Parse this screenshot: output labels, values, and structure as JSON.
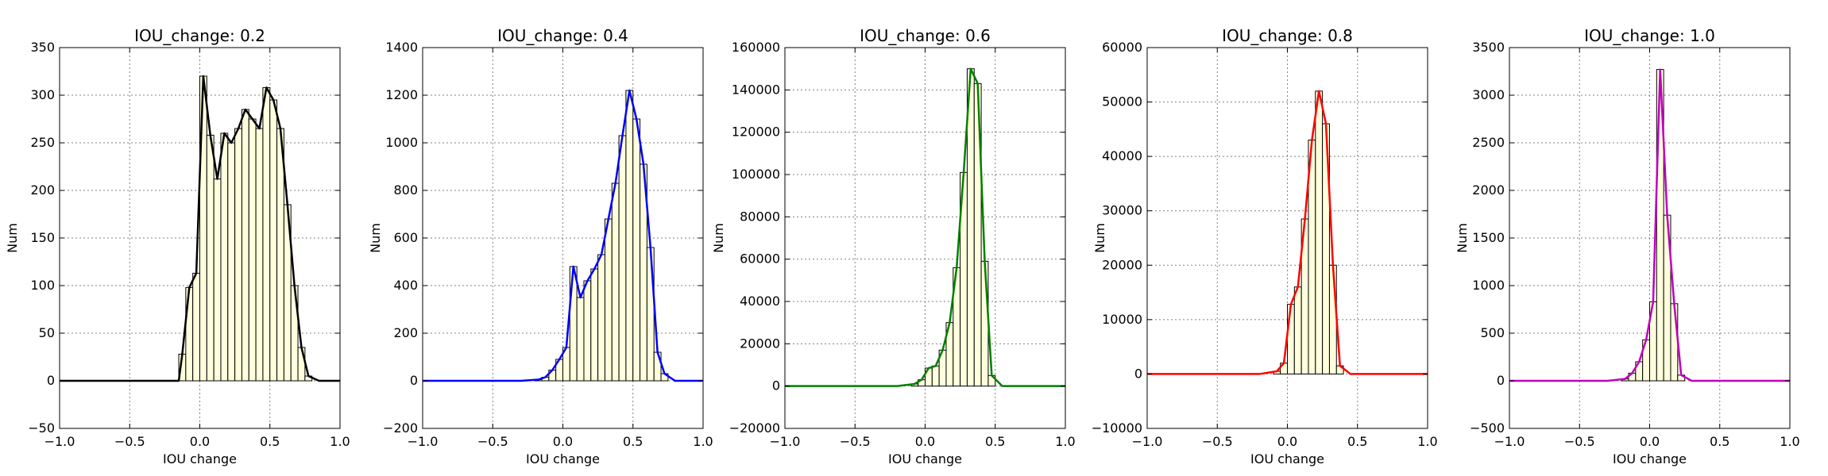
{
  "chart_data": [
    {
      "type": "bar",
      "title": "IOU_change: 0.2",
      "xlabel": "IOU change",
      "ylabel": "Num",
      "xlim": [
        -1.0,
        1.0
      ],
      "ylim": [
        -50,
        350
      ],
      "xticks": [
        -1.0,
        -0.5,
        0.0,
        0.5,
        1.0
      ],
      "xtick_labels": [
        "−1.0",
        "−0.5",
        "0.0",
        "0.5",
        "1.0"
      ],
      "yticks": [
        -50,
        0,
        50,
        100,
        150,
        200,
        250,
        300,
        350
      ],
      "ytick_labels": [
        "−50",
        "0",
        "50",
        "100",
        "150",
        "200",
        "250",
        "300",
        "350"
      ],
      "grid": true,
      "line_color": "#000000",
      "bar_color": "#ffffdd",
      "bins": [
        {
          "x0": -0.15,
          "x1": -0.1,
          "value": 28
        },
        {
          "x0": -0.1,
          "x1": -0.05,
          "value": 98
        },
        {
          "x0": -0.05,
          "x1": 0.0,
          "value": 113
        },
        {
          "x0": 0.0,
          "x1": 0.05,
          "value": 320
        },
        {
          "x0": 0.05,
          "x1": 0.1,
          "value": 258
        },
        {
          "x0": 0.1,
          "x1": 0.15,
          "value": 212
        },
        {
          "x0": 0.15,
          "x1": 0.2,
          "value": 260
        },
        {
          "x0": 0.2,
          "x1": 0.25,
          "value": 250
        },
        {
          "x0": 0.25,
          "x1": 0.3,
          "value": 265
        },
        {
          "x0": 0.3,
          "x1": 0.35,
          "value": 285
        },
        {
          "x0": 0.35,
          "x1": 0.4,
          "value": 275
        },
        {
          "x0": 0.4,
          "x1": 0.45,
          "value": 265
        },
        {
          "x0": 0.45,
          "x1": 0.5,
          "value": 308
        },
        {
          "x0": 0.5,
          "x1": 0.55,
          "value": 295
        },
        {
          "x0": 0.55,
          "x1": 0.6,
          "value": 265
        },
        {
          "x0": 0.6,
          "x1": 0.65,
          "value": 185
        },
        {
          "x0": 0.65,
          "x1": 0.7,
          "value": 100
        },
        {
          "x0": 0.7,
          "x1": 0.75,
          "value": 35
        },
        {
          "x0": 0.75,
          "x1": 0.8,
          "value": 5
        }
      ],
      "curve": [
        [
          -1.0,
          0
        ],
        [
          -0.15,
          0
        ],
        [
          -0.125,
          28
        ],
        [
          -0.075,
          98
        ],
        [
          -0.025,
          113
        ],
        [
          0.025,
          320
        ],
        [
          0.075,
          258
        ],
        [
          0.125,
          212
        ],
        [
          0.175,
          260
        ],
        [
          0.225,
          250
        ],
        [
          0.275,
          265
        ],
        [
          0.325,
          285
        ],
        [
          0.375,
          275
        ],
        [
          0.425,
          265
        ],
        [
          0.475,
          308
        ],
        [
          0.525,
          295
        ],
        [
          0.575,
          265
        ],
        [
          0.625,
          185
        ],
        [
          0.675,
          100
        ],
        [
          0.725,
          35
        ],
        [
          0.775,
          5
        ],
        [
          0.85,
          0
        ],
        [
          1.0,
          0
        ]
      ]
    },
    {
      "type": "bar",
      "title": "IOU_change: 0.4",
      "xlabel": "IOU change",
      "ylabel": "Num",
      "xlim": [
        -1.0,
        1.0
      ],
      "ylim": [
        -200,
        1400
      ],
      "xticks": [
        -1.0,
        -0.5,
        0.0,
        0.5,
        1.0
      ],
      "xtick_labels": [
        "−1.0",
        "−0.5",
        "0.0",
        "0.5",
        "1.0"
      ],
      "yticks": [
        -200,
        0,
        200,
        400,
        600,
        800,
        1000,
        1200,
        1400
      ],
      "ytick_labels": [
        "−200",
        "0",
        "200",
        "400",
        "600",
        "800",
        "1000",
        "1200",
        "1400"
      ],
      "grid": true,
      "line_color": "#0000ff",
      "bar_color": "#ffffdd",
      "bins": [
        {
          "x0": -0.2,
          "x1": -0.15,
          "value": 5
        },
        {
          "x0": -0.15,
          "x1": -0.1,
          "value": 15
        },
        {
          "x0": -0.1,
          "x1": -0.05,
          "value": 45
        },
        {
          "x0": -0.05,
          "x1": 0.0,
          "value": 90
        },
        {
          "x0": 0.0,
          "x1": 0.05,
          "value": 140
        },
        {
          "x0": 0.05,
          "x1": 0.1,
          "value": 480
        },
        {
          "x0": 0.1,
          "x1": 0.15,
          "value": 350
        },
        {
          "x0": 0.15,
          "x1": 0.2,
          "value": 420
        },
        {
          "x0": 0.2,
          "x1": 0.25,
          "value": 470
        },
        {
          "x0": 0.25,
          "x1": 0.3,
          "value": 530
        },
        {
          "x0": 0.3,
          "x1": 0.35,
          "value": 680
        },
        {
          "x0": 0.35,
          "x1": 0.4,
          "value": 830
        },
        {
          "x0": 0.4,
          "x1": 0.45,
          "value": 1030
        },
        {
          "x0": 0.45,
          "x1": 0.5,
          "value": 1220
        },
        {
          "x0": 0.5,
          "x1": 0.55,
          "value": 1100
        },
        {
          "x0": 0.55,
          "x1": 0.6,
          "value": 910
        },
        {
          "x0": 0.6,
          "x1": 0.65,
          "value": 560
        },
        {
          "x0": 0.65,
          "x1": 0.7,
          "value": 120
        },
        {
          "x0": 0.7,
          "x1": 0.75,
          "value": 30
        }
      ],
      "curve": [
        [
          -1.0,
          0
        ],
        [
          -0.3,
          0
        ],
        [
          -0.175,
          5
        ],
        [
          -0.125,
          15
        ],
        [
          -0.075,
          45
        ],
        [
          -0.025,
          90
        ],
        [
          0.025,
          140
        ],
        [
          0.075,
          480
        ],
        [
          0.125,
          350
        ],
        [
          0.175,
          420
        ],
        [
          0.225,
          470
        ],
        [
          0.275,
          530
        ],
        [
          0.325,
          680
        ],
        [
          0.375,
          830
        ],
        [
          0.425,
          1030
        ],
        [
          0.475,
          1220
        ],
        [
          0.525,
          1100
        ],
        [
          0.575,
          910
        ],
        [
          0.625,
          560
        ],
        [
          0.675,
          120
        ],
        [
          0.725,
          30
        ],
        [
          0.8,
          0
        ],
        [
          1.0,
          0
        ]
      ]
    },
    {
      "type": "bar",
      "title": "IOU_change: 0.6",
      "xlabel": "IOU change",
      "ylabel": "Num",
      "xlim": [
        -1.0,
        1.0
      ],
      "ylim": [
        -20000,
        160000
      ],
      "xticks": [
        -1.0,
        -0.5,
        0.0,
        0.5,
        1.0
      ],
      "xtick_labels": [
        "−1.0",
        "−0.5",
        "0.0",
        "0.5",
        "1.0"
      ],
      "yticks": [
        -20000,
        0,
        20000,
        40000,
        60000,
        80000,
        100000,
        120000,
        140000,
        160000
      ],
      "ytick_labels": [
        "−20000",
        "0",
        "20000",
        "40000",
        "60000",
        "80000",
        "100000",
        "120000",
        "140000",
        "160000"
      ],
      "grid": true,
      "line_color": "#008000",
      "bar_color": "#ffffdd",
      "bins": [
        {
          "x0": -0.1,
          "x1": -0.05,
          "value": 1000
        },
        {
          "x0": -0.05,
          "x1": 0.0,
          "value": 3000
        },
        {
          "x0": 0.0,
          "x1": 0.05,
          "value": 8500
        },
        {
          "x0": 0.05,
          "x1": 0.1,
          "value": 9500
        },
        {
          "x0": 0.1,
          "x1": 0.15,
          "value": 17000
        },
        {
          "x0": 0.15,
          "x1": 0.2,
          "value": 30000
        },
        {
          "x0": 0.2,
          "x1": 0.25,
          "value": 56000
        },
        {
          "x0": 0.25,
          "x1": 0.3,
          "value": 101000
        },
        {
          "x0": 0.3,
          "x1": 0.35,
          "value": 150000
        },
        {
          "x0": 0.35,
          "x1": 0.4,
          "value": 143000
        },
        {
          "x0": 0.4,
          "x1": 0.45,
          "value": 59000
        },
        {
          "x0": 0.45,
          "x1": 0.5,
          "value": 5000
        }
      ],
      "curve": [
        [
          -1.0,
          0
        ],
        [
          -0.2,
          0
        ],
        [
          -0.075,
          1000
        ],
        [
          -0.025,
          3000
        ],
        [
          0.025,
          8500
        ],
        [
          0.075,
          9500
        ],
        [
          0.125,
          17000
        ],
        [
          0.175,
          30000
        ],
        [
          0.225,
          56000
        ],
        [
          0.275,
          101000
        ],
        [
          0.325,
          150000
        ],
        [
          0.375,
          143000
        ],
        [
          0.425,
          59000
        ],
        [
          0.475,
          5000
        ],
        [
          0.55,
          0
        ],
        [
          1.0,
          0
        ]
      ]
    },
    {
      "type": "bar",
      "title": "IOU_change: 0.8",
      "xlabel": "IOU change",
      "ylabel": "Num",
      "xlim": [
        -1.0,
        1.0
      ],
      "ylim": [
        -10000,
        60000
      ],
      "xticks": [
        -1.0,
        -0.5,
        0.0,
        0.5,
        1.0
      ],
      "xtick_labels": [
        "−1.0",
        "−0.5",
        "0.0",
        "0.5",
        "1.0"
      ],
      "yticks": [
        -10000,
        0,
        10000,
        20000,
        30000,
        40000,
        50000,
        60000
      ],
      "ytick_labels": [
        "−10000",
        "0",
        "10000",
        "20000",
        "30000",
        "40000",
        "50000",
        "60000"
      ],
      "grid": true,
      "line_color": "#ff0000",
      "bar_color": "#ffffdd",
      "bins": [
        {
          "x0": -0.1,
          "x1": -0.05,
          "value": 500
        },
        {
          "x0": -0.05,
          "x1": 0.0,
          "value": 2000
        },
        {
          "x0": 0.0,
          "x1": 0.05,
          "value": 12800
        },
        {
          "x0": 0.05,
          "x1": 0.1,
          "value": 16000
        },
        {
          "x0": 0.1,
          "x1": 0.15,
          "value": 28500
        },
        {
          "x0": 0.15,
          "x1": 0.2,
          "value": 43000
        },
        {
          "x0": 0.2,
          "x1": 0.25,
          "value": 52000
        },
        {
          "x0": 0.25,
          "x1": 0.3,
          "value": 46000
        },
        {
          "x0": 0.3,
          "x1": 0.35,
          "value": 20000
        },
        {
          "x0": 0.35,
          "x1": 0.4,
          "value": 1500
        }
      ],
      "curve": [
        [
          -1.0,
          0
        ],
        [
          -0.2,
          0
        ],
        [
          -0.075,
          500
        ],
        [
          -0.025,
          2000
        ],
        [
          0.025,
          12800
        ],
        [
          0.075,
          16000
        ],
        [
          0.125,
          28500
        ],
        [
          0.175,
          43000
        ],
        [
          0.225,
          52000
        ],
        [
          0.275,
          46000
        ],
        [
          0.325,
          20000
        ],
        [
          0.375,
          1500
        ],
        [
          0.45,
          0
        ],
        [
          1.0,
          0
        ]
      ]
    },
    {
      "type": "bar",
      "title": "IOU_change: 1.0",
      "xlabel": "IOU change",
      "ylabel": "Num",
      "xlim": [
        -1.0,
        1.0
      ],
      "ylim": [
        -500,
        3500
      ],
      "xticks": [
        -1.0,
        -0.5,
        0.0,
        0.5,
        1.0
      ],
      "xtick_labels": [
        "−1.0",
        "−0.5",
        "0.0",
        "0.5",
        "1.0"
      ],
      "yticks": [
        -500,
        0,
        500,
        1000,
        1500,
        2000,
        2500,
        3000,
        3500
      ],
      "ytick_labels": [
        "−500",
        "0",
        "500",
        "1000",
        "1500",
        "2000",
        "2500",
        "3000",
        "3500"
      ],
      "grid": true,
      "line_color": "#bf00bf",
      "bar_color": "#ffffdd",
      "bins": [
        {
          "x0": -0.2,
          "x1": -0.15,
          "value": 20
        },
        {
          "x0": -0.15,
          "x1": -0.1,
          "value": 80
        },
        {
          "x0": -0.1,
          "x1": -0.05,
          "value": 200
        },
        {
          "x0": -0.05,
          "x1": 0.0,
          "value": 430
        },
        {
          "x0": 0.0,
          "x1": 0.05,
          "value": 830
        },
        {
          "x0": 0.05,
          "x1": 0.1,
          "value": 3270
        },
        {
          "x0": 0.1,
          "x1": 0.15,
          "value": 1740
        },
        {
          "x0": 0.15,
          "x1": 0.2,
          "value": 810
        },
        {
          "x0": 0.2,
          "x1": 0.25,
          "value": 60
        }
      ],
      "curve": [
        [
          -1.0,
          0
        ],
        [
          -0.3,
          0
        ],
        [
          -0.175,
          20
        ],
        [
          -0.125,
          80
        ],
        [
          -0.075,
          200
        ],
        [
          -0.025,
          430
        ],
        [
          0.025,
          830
        ],
        [
          0.075,
          3270
        ],
        [
          0.125,
          1740
        ],
        [
          0.175,
          810
        ],
        [
          0.225,
          60
        ],
        [
          0.3,
          0
        ],
        [
          1.0,
          0
        ]
      ]
    }
  ]
}
